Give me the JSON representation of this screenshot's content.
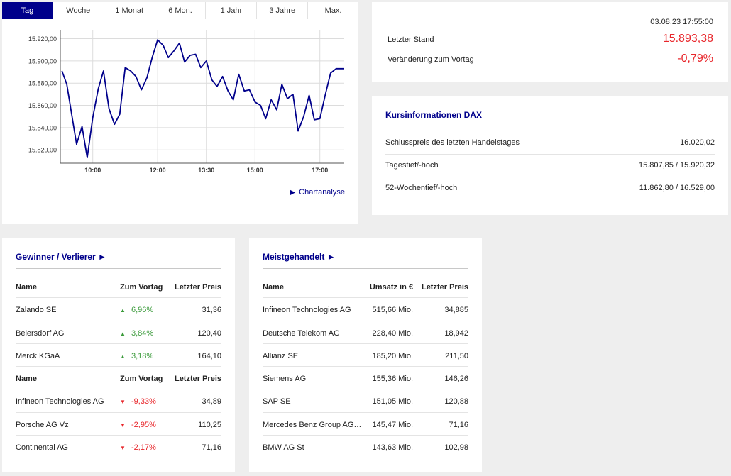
{
  "tabs": [
    "Tag",
    "Woche",
    "1 Monat",
    "6 Mon.",
    "1 Jahr",
    "3 Jahre",
    "Max."
  ],
  "active_tab": 0,
  "chart_link": "Chartanalyse",
  "colors": {
    "accent": "#00008b",
    "negative": "#e8262b",
    "positive": "#3a9a3a",
    "line": "#00008b"
  },
  "chart_data": {
    "type": "line",
    "title": "",
    "xlabel": "",
    "ylabel": "",
    "x_ticks": [
      "10:00",
      "12:00",
      "13:30",
      "15:00",
      "17:00"
    ],
    "x_tick_hours": [
      10,
      12,
      13.5,
      15,
      17
    ],
    "y_ticks": [
      "15.820,00",
      "15.840,00",
      "15.860,00",
      "15.880,00",
      "15.900,00",
      "15.920,00"
    ],
    "y_tick_values": [
      15820,
      15840,
      15860,
      15880,
      15900,
      15920
    ],
    "xlim_hours": [
      9.0,
      17.75
    ],
    "ylim": [
      15808,
      15928
    ],
    "grid": true,
    "series": [
      {
        "x": [
          9.05,
          9.2,
          9.35,
          9.5,
          9.67,
          9.83,
          10.0,
          10.17,
          10.33,
          10.5,
          10.67,
          10.83,
          11.0,
          11.17,
          11.33,
          11.5,
          11.67,
          11.83,
          12.0,
          12.17,
          12.33,
          12.5,
          12.67,
          12.83,
          13.0,
          13.17,
          13.33,
          13.5,
          13.67,
          13.83,
          14.0,
          14.17,
          14.33,
          14.5,
          14.67,
          14.83,
          15.0,
          15.17,
          15.33,
          15.5,
          15.67,
          15.83,
          16.0,
          16.17,
          16.33,
          16.5,
          16.67,
          16.83,
          17.0,
          17.17,
          17.33,
          17.5,
          17.67,
          17.75
        ],
        "y": [
          15891,
          15879,
          15852,
          15825,
          15841,
          15813,
          15849,
          15875,
          15891,
          15857,
          15843,
          15852,
          15894,
          15891,
          15886,
          15874,
          15885,
          15903,
          15919,
          15914,
          15903,
          15909,
          15916,
          15899,
          15905,
          15906,
          15894,
          15900,
          15883,
          15877,
          15886,
          15873,
          15865,
          15888,
          15873,
          15874,
          15863,
          15860,
          15848,
          15865,
          15856,
          15879,
          15866,
          15870,
          15837,
          15850,
          15869,
          15847,
          15848,
          15870,
          15889,
          15893,
          15893,
          15893
        ]
      }
    ]
  },
  "quote": {
    "timestamp": "03.08.23 17:55:00",
    "last_label": "Letzter Stand",
    "last_value": "15.893,38",
    "change_label": "Veränderung zum Vortag",
    "change_value": "-0,79%"
  },
  "info": {
    "title": "Kursinformationen DAX",
    "rows": [
      {
        "label": "Schlusspreis des letzten Handelstages",
        "value": "16.020,02"
      },
      {
        "label": "Tagestief/-hoch",
        "value": "15.807,85 / 15.920,32"
      },
      {
        "label": "52-Wochentief/-hoch",
        "value": "11.862,80 / 16.529,00"
      }
    ]
  },
  "gainers_losers": {
    "title": "Gewinner / Verlierer ►",
    "headers": [
      "Name",
      "Zum Vortag",
      "Letzter Preis"
    ],
    "gainers": [
      {
        "name": "Zalando SE",
        "change": "6,96%",
        "price": "31,36"
      },
      {
        "name": "Beiersdorf AG",
        "change": "3,84%",
        "price": "120,40"
      },
      {
        "name": "Merck KGaA",
        "change": "3,18%",
        "price": "164,10"
      }
    ],
    "losers": [
      {
        "name": "Infineon Technologies AG",
        "change": "-9,33%",
        "price": "34,89"
      },
      {
        "name": "Porsche AG Vz",
        "change": "-2,95%",
        "price": "110,25"
      },
      {
        "name": "Continental AG",
        "change": "-2,17%",
        "price": "71,16"
      }
    ],
    "up_icon": "▲",
    "down_icon": "▼"
  },
  "most_traded": {
    "title": "Meistgehandelt ►",
    "headers": [
      "Name",
      "Umsatz in €",
      "Letzter Preis"
    ],
    "rows": [
      {
        "name": "Infineon Technologies AG",
        "volume": "515,66 Mio.",
        "price": "34,885"
      },
      {
        "name": "Deutsche Telekom AG",
        "volume": "228,40 Mio.",
        "price": "18,942"
      },
      {
        "name": "Allianz SE",
        "volume": "185,20 Mio.",
        "price": "211,50"
      },
      {
        "name": "Siemens AG",
        "volume": "155,36 Mio.",
        "price": "146,26"
      },
      {
        "name": "SAP SE",
        "volume": "151,05 Mio.",
        "price": "120,88"
      },
      {
        "name": "Mercedes Benz Group AG ...",
        "volume": "145,47 Mio.",
        "price": "71,16"
      },
      {
        "name": "BMW AG St",
        "volume": "143,63 Mio.",
        "price": "102,98"
      }
    ]
  }
}
